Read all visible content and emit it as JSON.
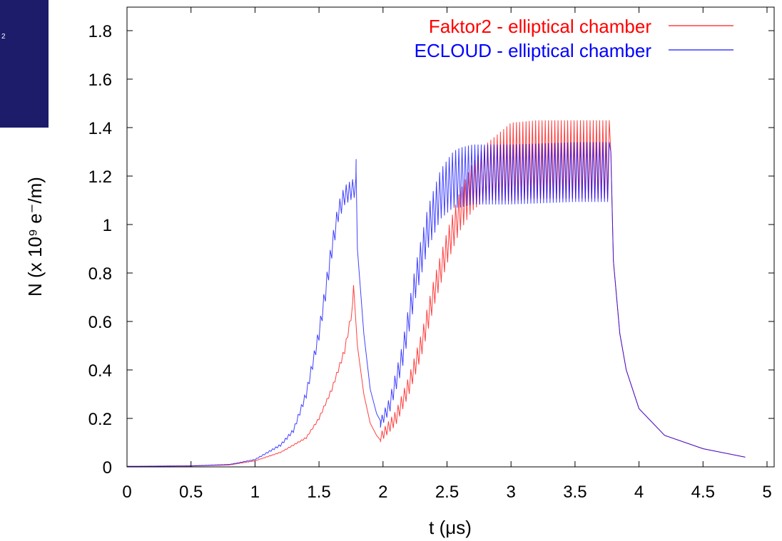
{
  "corner_panel": {
    "text": "2"
  },
  "chart_data": {
    "type": "line",
    "xlabel": "t (μs)",
    "ylabel": "N (x 10⁹ e⁻/m)",
    "xlim": [
      0,
      5
    ],
    "ylim": [
      0,
      1.9
    ],
    "x_ticks": [
      0,
      0.5,
      1,
      1.5,
      2,
      2.5,
      3,
      3.5,
      4,
      4.5,
      5
    ],
    "x_tick_labels": [
      "0",
      "0.5",
      "1",
      "1.5",
      "2",
      "2.5",
      "3",
      "3.5",
      "4",
      "4.5",
      "5"
    ],
    "y_ticks": [
      0,
      0.2,
      0.4,
      0.6,
      0.8,
      1,
      1.2,
      1.4,
      1.6,
      1.8
    ],
    "y_tick_labels": [
      "0",
      "0.2",
      "0.4",
      "0.6",
      "0.8",
      "1",
      "1.2",
      "1.4",
      "1.6",
      "1.8"
    ],
    "grid": false,
    "legend_position": "top-right",
    "series": [
      {
        "name": "Faktor2 - elliptical chamber",
        "color": "#ff0000",
        "env": [
          [
            0,
            0.002
          ],
          [
            0.5,
            0.004
          ],
          [
            0.8,
            0.008
          ],
          [
            1.0,
            0.025
          ],
          [
            1.2,
            0.06
          ],
          [
            1.4,
            0.12
          ],
          [
            1.5,
            0.2
          ],
          [
            1.6,
            0.32
          ],
          [
            1.7,
            0.48
          ],
          [
            1.75,
            0.62
          ],
          [
            1.77,
            0.68
          ]
        ],
        "env_amp": 0.02,
        "peak": [
          1.77,
          0.75
        ],
        "decay": [
          [
            1.77,
            0.75
          ],
          [
            1.8,
            0.5
          ],
          [
            1.85,
            0.3
          ],
          [
            1.9,
            0.18
          ],
          [
            1.95,
            0.13
          ],
          [
            1.98,
            0.11
          ]
        ],
        "ramp": [
          [
            1.98,
            0.12
          ],
          [
            2.1,
            0.2
          ],
          [
            2.2,
            0.33
          ],
          [
            2.3,
            0.5
          ],
          [
            2.4,
            0.72
          ],
          [
            2.5,
            0.9
          ],
          [
            2.6,
            1.05
          ],
          [
            2.7,
            1.15
          ],
          [
            2.8,
            1.21
          ],
          [
            3.0,
            1.25
          ],
          [
            3.2,
            1.26
          ],
          [
            3.5,
            1.26
          ],
          [
            3.78,
            1.26
          ]
        ],
        "ramp_amp": [
          [
            1.98,
            0.02
          ],
          [
            2.5,
            0.07
          ],
          [
            2.8,
            0.12
          ],
          [
            3.0,
            0.17
          ],
          [
            3.78,
            0.17
          ]
        ],
        "tail": [
          [
            3.78,
            1.3
          ],
          [
            3.8,
            0.85
          ],
          [
            3.85,
            0.55
          ],
          [
            3.9,
            0.4
          ],
          [
            4.0,
            0.24
          ],
          [
            4.2,
            0.13
          ],
          [
            4.5,
            0.075
          ],
          [
            4.83,
            0.04
          ]
        ]
      },
      {
        "name": "ECLOUD - elliptical chamber",
        "color": "#0000ff",
        "env": [
          [
            0,
            0.002
          ],
          [
            0.5,
            0.004
          ],
          [
            0.8,
            0.01
          ],
          [
            1.0,
            0.03
          ],
          [
            1.2,
            0.09
          ],
          [
            1.3,
            0.15
          ],
          [
            1.4,
            0.3
          ],
          [
            1.5,
            0.55
          ],
          [
            1.55,
            0.72
          ],
          [
            1.6,
            0.9
          ],
          [
            1.65,
            1.05
          ],
          [
            1.7,
            1.12
          ],
          [
            1.77,
            1.15
          ]
        ],
        "env_amp": 0.04,
        "peak": [
          1.79,
          1.27
        ],
        "decay": [
          [
            1.79,
            1.22
          ],
          [
            1.8,
            0.9
          ],
          [
            1.85,
            0.55
          ],
          [
            1.9,
            0.32
          ],
          [
            1.95,
            0.22
          ],
          [
            1.98,
            0.19
          ]
        ],
        "ramp": [
          [
            1.98,
            0.18
          ],
          [
            2.05,
            0.25
          ],
          [
            2.15,
            0.45
          ],
          [
            2.25,
            0.75
          ],
          [
            2.35,
            0.98
          ],
          [
            2.45,
            1.12
          ],
          [
            2.55,
            1.18
          ],
          [
            2.7,
            1.2
          ],
          [
            3.0,
            1.2
          ],
          [
            3.5,
            1.21
          ],
          [
            3.78,
            1.21
          ]
        ],
        "ramp_amp": [
          [
            1.98,
            0.02
          ],
          [
            2.4,
            0.1
          ],
          [
            2.6,
            0.13
          ],
          [
            3.78,
            0.13
          ]
        ],
        "tail": [
          [
            3.78,
            1.3
          ],
          [
            3.8,
            0.85
          ],
          [
            3.85,
            0.55
          ],
          [
            3.9,
            0.4
          ],
          [
            4.0,
            0.24
          ],
          [
            4.2,
            0.13
          ],
          [
            4.5,
            0.075
          ],
          [
            4.83,
            0.04
          ]
        ]
      }
    ]
  }
}
